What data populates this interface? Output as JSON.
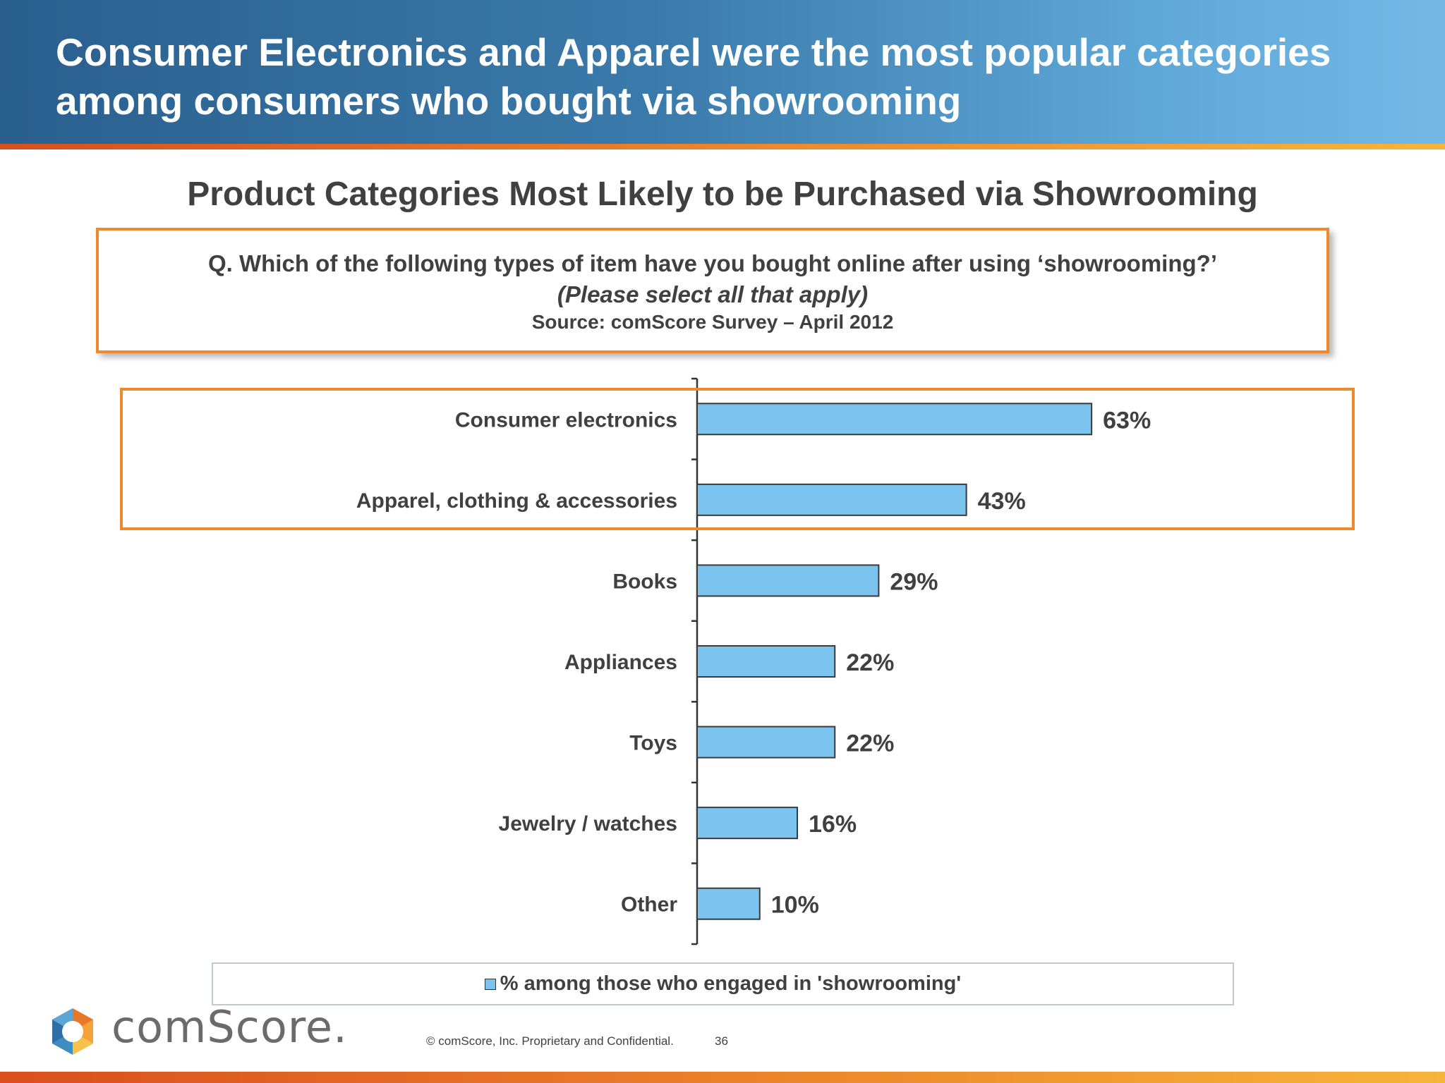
{
  "header": {
    "title": "Consumer Electronics and Apparel were the most popular categories among consumers who bought via showrooming"
  },
  "question_box": {
    "question": "Q. Which of the following types of item have you bought online after using ‘showrooming?’",
    "instruction": "(Please select all that apply)",
    "source": "Source: comScore Survey – April 2012"
  },
  "chart_data": {
    "type": "bar",
    "orientation": "horizontal",
    "title": "Product Categories Most Likely to be Purchased via Showrooming",
    "categories": [
      "Consumer electronics",
      "Apparel, clothing & accessories",
      "Books",
      "Appliances",
      "Toys",
      "Jewelry / watches",
      "Other"
    ],
    "series": [
      {
        "name": "% among those who engaged in 'showrooming'",
        "values": [
          63,
          43,
          29,
          22,
          22,
          16,
          10
        ],
        "labels": [
          "63%",
          "43%",
          "29%",
          "22%",
          "22%",
          "16%",
          "10%"
        ]
      }
    ],
    "xlim": [
      0,
      100
    ],
    "grid": false,
    "legend_position": "bottom",
    "highlighted_categories": [
      "Consumer electronics",
      "Apparel, clothing & accessories"
    ],
    "bar_color": "#7cc4f0",
    "highlight_color": "#ee8a2c"
  },
  "footer": {
    "logo_text": "comScore.",
    "copyright": "© comScore, Inc.  Proprietary and Confidential.",
    "page_number": "36"
  },
  "colors": {
    "header_start": "#2a5f8e",
    "header_end": "#74b9e6",
    "accent_orange": "#ee8a2c"
  }
}
